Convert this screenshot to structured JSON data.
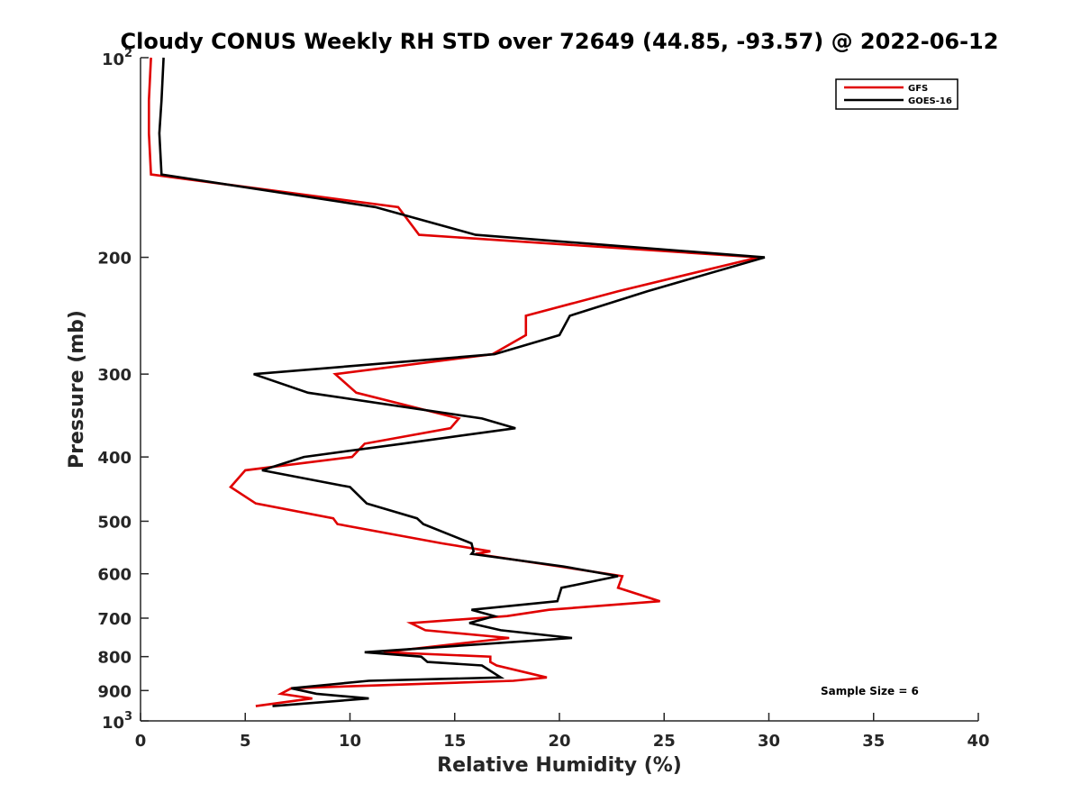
{
  "chart_data": {
    "type": "line",
    "title": "Cloudy CONUS Weekly RH STD over 72649 (44.85, -93.57) @ 2022-06-12",
    "xlabel": "Relative Humidity (%)",
    "ylabel": "Pressure (mb)",
    "xlim": [
      0,
      40
    ],
    "ylim": [
      100,
      1000
    ],
    "y_scale": "log",
    "y_reversed": true,
    "grid": false,
    "legend_position": "top-right",
    "x_ticks": [
      0,
      5,
      10,
      15,
      20,
      25,
      30,
      35,
      40
    ],
    "x_tick_labels": [
      "0",
      "5",
      "10",
      "15",
      "20",
      "25",
      "30",
      "35",
      "40"
    ],
    "y_ticks": [
      200,
      300,
      400,
      500,
      600,
      700,
      800,
      900
    ],
    "y_tick_labels": [
      "200",
      "300",
      "400",
      "500",
      "600",
      "700",
      "800",
      "900"
    ],
    "y_ends": [
      {
        "value": 100,
        "base": "10",
        "exp": "2"
      },
      {
        "value": 1000,
        "base": "10",
        "exp": "3"
      }
    ],
    "annotation": "Sample Size = 6",
    "series": [
      {
        "name": "GFS",
        "color": "#e00000",
        "x": [
          0.5,
          0.4,
          0.4,
          0.5,
          12.3,
          13.3,
          29.5,
          22.8,
          18.4,
          18.4,
          16.8,
          9.3,
          10.3,
          15.2,
          14.8,
          10.7,
          10.1,
          5.0,
          4.3,
          5.5,
          9.2,
          9.4,
          14.4,
          16.7,
          16.0,
          20.0,
          23.0,
          22.8,
          24.8,
          19.5,
          17.5,
          12.9,
          13.6,
          17.6,
          11.6,
          16.7,
          16.7,
          17.0,
          19.4,
          17.8,
          7.2,
          6.7,
          8.2,
          5.5
        ],
        "y": [
          100,
          116,
          130,
          150,
          168,
          185,
          200,
          225,
          245,
          262,
          280,
          300,
          320,
          350,
          362,
          382,
          400,
          419,
          444,
          470,
          495,
          505,
          540,
          555,
          560,
          585,
          605,
          630,
          660,
          680,
          695,
          712,
          730,
          750,
          788,
          800,
          815,
          825,
          860,
          870,
          893,
          910,
          925,
          950
        ]
      },
      {
        "name": "GOES-16",
        "color": "#000000",
        "x": [
          1.1,
          1.0,
          0.9,
          1.0,
          11.2,
          16.0,
          29.8,
          24.2,
          20.5,
          20.0,
          16.9,
          5.4,
          8.0,
          16.3,
          17.9,
          12.5,
          7.8,
          5.8,
          10.0,
          10.8,
          13.2,
          13.5,
          15.8,
          15.9,
          15.8,
          20.2,
          22.8,
          20.1,
          19.9,
          15.8,
          16.9,
          15.7,
          17.2,
          20.6,
          10.7,
          13.4,
          13.7,
          16.3,
          17.2,
          10.9,
          7.2,
          8.4,
          10.9,
          6.3
        ],
        "y": [
          100,
          116,
          130,
          150,
          168,
          185,
          200,
          225,
          245,
          262,
          280,
          300,
          320,
          350,
          362,
          382,
          400,
          419,
          444,
          470,
          495,
          505,
          540,
          555,
          560,
          585,
          605,
          630,
          660,
          680,
          695,
          712,
          730,
          750,
          788,
          800,
          815,
          825,
          860,
          870,
          893,
          910,
          925,
          950
        ]
      }
    ]
  }
}
